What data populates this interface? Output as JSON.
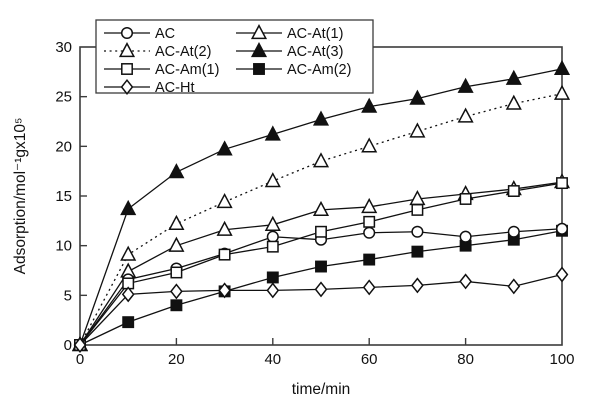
{
  "figure": {
    "background": "#ffffff",
    "ink_color": "#111111",
    "frame_color": "#3c3c3c"
  },
  "chart_data": {
    "type": "line",
    "title": "",
    "xlabel": "time/min",
    "ylabel": "Adsorption/mol⁻¹gx10⁵",
    "xlim": [
      0,
      100
    ],
    "ylim": [
      0,
      30
    ],
    "xticks": [
      0,
      20,
      40,
      60,
      80,
      100
    ],
    "yticks": [
      0,
      5,
      10,
      15,
      20,
      25,
      30
    ],
    "grid": false,
    "legend": {
      "position": "top-left-inside",
      "columns": 2,
      "column_major": true,
      "border": true
    },
    "x": [
      0,
      10,
      20,
      30,
      40,
      50,
      60,
      70,
      80,
      90,
      100
    ],
    "series": [
      {
        "name": "AC",
        "marker": "circle",
        "marker_fill": "open",
        "line": "solid",
        "values": [
          0,
          6.6,
          7.7,
          9.2,
          10.9,
          10.6,
          11.3,
          11.4,
          10.9,
          11.4,
          11.7
        ]
      },
      {
        "name": "AC-At(2)",
        "marker": "triangle",
        "marker_fill": "open",
        "line": "dotted",
        "values": [
          0,
          9.1,
          12.2,
          14.4,
          16.5,
          18.5,
          20.0,
          21.5,
          23.0,
          24.3,
          25.3
        ]
      },
      {
        "name": "AC-Am(1)",
        "marker": "square",
        "marker_fill": "open",
        "line": "solid",
        "values": [
          0,
          6.2,
          7.3,
          9.1,
          9.9,
          11.4,
          12.4,
          13.6,
          14.7,
          15.5,
          16.3
        ]
      },
      {
        "name": "AC-Ht",
        "marker": "diamond",
        "marker_fill": "open",
        "line": "solid",
        "values": [
          0,
          5.1,
          5.4,
          5.5,
          5.5,
          5.6,
          5.8,
          6.0,
          6.4,
          5.9,
          7.1
        ]
      },
      {
        "name": "AC-At(1)",
        "marker": "triangle",
        "marker_fill": "open",
        "line": "solid",
        "values": [
          0,
          7.4,
          10.0,
          11.6,
          12.1,
          13.6,
          13.9,
          14.7,
          15.2,
          15.7,
          16.4
        ]
      },
      {
        "name": "AC-At(3)",
        "marker": "triangle",
        "marker_fill": "filled",
        "line": "solid",
        "values": [
          0,
          13.7,
          17.4,
          19.7,
          21.2,
          22.7,
          24.0,
          24.8,
          26.0,
          26.8,
          27.8
        ]
      },
      {
        "name": "AC-Am(2)",
        "marker": "square",
        "marker_fill": "filled",
        "line": "solid",
        "values": [
          0,
          2.3,
          4.0,
          5.4,
          6.8,
          7.9,
          8.6,
          9.4,
          10.0,
          10.6,
          11.5
        ]
      }
    ],
    "draw_order": [
      5,
      1,
      4,
      6,
      0,
      2,
      3
    ]
  }
}
